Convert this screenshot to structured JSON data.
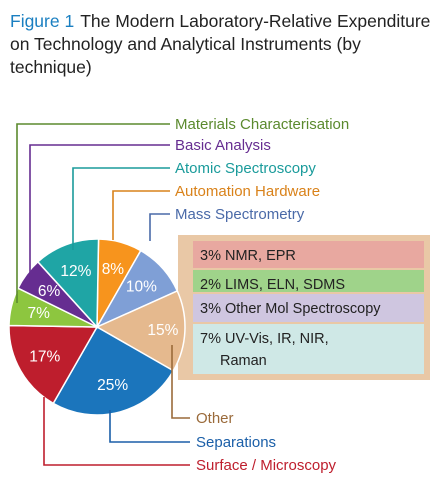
{
  "figure": {
    "label": "Figure 1",
    "title": "The Modern Laboratory-Relative Expenditure on Technology and Analytical Instruments (by technique)"
  },
  "chart_data": {
    "type": "pie",
    "unit": "%",
    "slices": [
      {
        "name": "Automation Hardware",
        "value": 8,
        "label": "8%",
        "color": "#f7941d"
      },
      {
        "name": "Mass Spectrometry",
        "value": 10,
        "label": "10%",
        "color": "#7f9fd6"
      },
      {
        "name": "Other",
        "value": 15,
        "label": "15%",
        "color": "#e5b98e"
      },
      {
        "name": "Separations",
        "value": 25,
        "label": "25%",
        "color": "#1b75bc"
      },
      {
        "name": "Surface / Microscopy",
        "value": 17,
        "label": "17%",
        "color": "#be1e2d"
      },
      {
        "name": "Materials Characterisation",
        "value": 7,
        "label": "7%",
        "color": "#8dc63f"
      },
      {
        "name": "Basic Analysis",
        "value": 6,
        "label": "6%",
        "color": "#662d91"
      },
      {
        "name": "Atomic Spectroscopy",
        "value": 12,
        "label": "12%",
        "color": "#1fa5a5"
      }
    ],
    "label_colors": {
      "Materials Characterisation": "#5b8a2e",
      "Basic Analysis": "#662d91",
      "Atomic Spectroscopy": "#1a9b9b",
      "Automation Hardware": "#d9821a",
      "Mass Spectrometry": "#4a6aa8",
      "Other": "#9a6a3a",
      "Separations": "#1b5fa8",
      "Surface / Microscopy": "#be1e2d"
    },
    "other_breakdown": [
      {
        "text": "3% NMR, EPR",
        "value": 3,
        "color": "#e8a8a0"
      },
      {
        "text": "2% LIMS, ELN, SDMS",
        "value": 2,
        "color": "#9fd38a"
      },
      {
        "text": "3% Other Mol Spectroscopy",
        "value": 3,
        "color": "#cfc6e0"
      },
      {
        "text": "7% UV-Vis, IR, NIR,",
        "text2": "Raman",
        "value": 7,
        "color": "#cfe8e6"
      }
    ],
    "other_box_border": "#e9c8a6"
  }
}
